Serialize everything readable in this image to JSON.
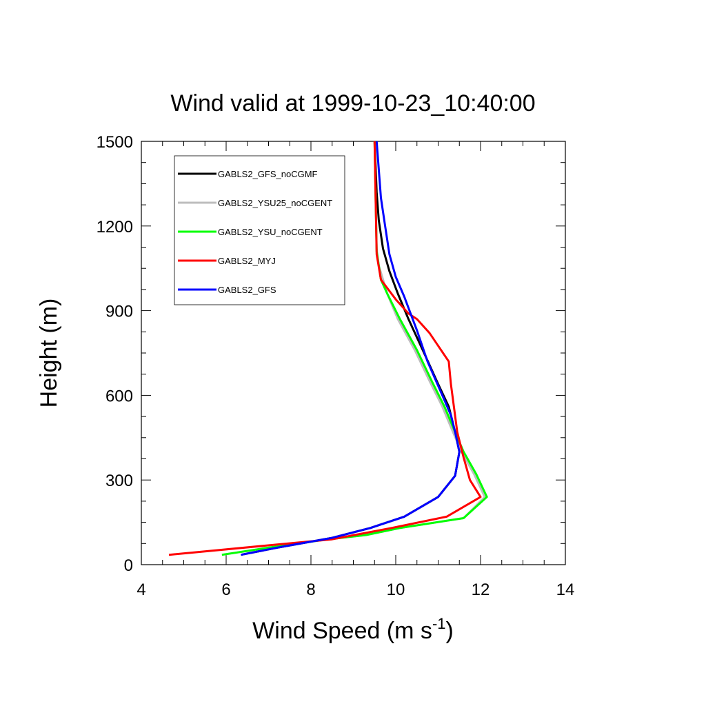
{
  "chart_data": {
    "type": "line",
    "title": "Wind valid at 1999-10-23_10:40:00",
    "xlabel": "Wind Speed (m s",
    "xlabel_sup": "-1",
    "xlabel_close": ")",
    "ylabel": "Height (m)",
    "xlim": [
      4,
      14
    ],
    "ylim": [
      0,
      1500
    ],
    "xticks": [
      4,
      6,
      8,
      10,
      12,
      14
    ],
    "yticks": [
      0,
      300,
      600,
      900,
      1200,
      1500
    ],
    "legend_position": "top-left",
    "series": [
      {
        "name": "GABLS2_GFS_noCGMF",
        "color": "#000000",
        "points": [
          [
            6.35,
            35
          ],
          [
            7.2,
            60
          ],
          [
            8.5,
            95
          ],
          [
            9.4,
            130
          ],
          [
            10.2,
            170
          ],
          [
            11.0,
            240
          ],
          [
            11.4,
            315
          ],
          [
            11.5,
            400
          ],
          [
            11.4,
            470
          ],
          [
            11.25,
            560
          ],
          [
            11.0,
            640
          ],
          [
            10.7,
            740
          ],
          [
            10.3,
            870
          ],
          [
            10.05,
            960
          ],
          [
            9.85,
            1040
          ],
          [
            9.7,
            1120
          ],
          [
            9.6,
            1220
          ],
          [
            9.55,
            1320
          ],
          [
            9.5,
            1500
          ]
        ]
      },
      {
        "name": "GABLS2_YSU25_noCGENT",
        "color": "#bdbdbd",
        "points": [
          [
            5.9,
            35
          ],
          [
            7.0,
            60
          ],
          [
            8.4,
            90
          ],
          [
            9.3,
            105
          ],
          [
            10.1,
            130
          ],
          [
            11.6,
            165
          ],
          [
            12.1,
            240
          ],
          [
            11.85,
            320
          ],
          [
            11.55,
            400
          ],
          [
            11.35,
            470
          ],
          [
            11.1,
            560
          ],
          [
            10.8,
            650
          ],
          [
            10.45,
            760
          ],
          [
            10.05,
            870
          ],
          [
            9.8,
            960
          ],
          [
            9.6,
            1060
          ],
          [
            9.55,
            1120
          ],
          [
            9.5,
            1500
          ]
        ]
      },
      {
        "name": "GABLS2_YSU_noCGENT",
        "color": "#00ff00",
        "points": [
          [
            5.9,
            35
          ],
          [
            7.0,
            60
          ],
          [
            8.4,
            90
          ],
          [
            9.3,
            105
          ],
          [
            10.1,
            130
          ],
          [
            11.6,
            165
          ],
          [
            12.15,
            240
          ],
          [
            11.9,
            320
          ],
          [
            11.6,
            400
          ],
          [
            11.4,
            470
          ],
          [
            11.15,
            560
          ],
          [
            10.85,
            650
          ],
          [
            10.5,
            760
          ],
          [
            10.1,
            870
          ],
          [
            9.8,
            960
          ],
          [
            9.65,
            1010
          ],
          [
            9.55,
            1110
          ],
          [
            9.5,
            1500
          ]
        ]
      },
      {
        "name": "GABLS2_MYJ",
        "color": "#ff0000",
        "points": [
          [
            4.65,
            35
          ],
          [
            8.5,
            90
          ],
          [
            9.9,
            130
          ],
          [
            11.2,
            170
          ],
          [
            12.0,
            240
          ],
          [
            11.75,
            300
          ],
          [
            11.6,
            380
          ],
          [
            11.45,
            470
          ],
          [
            11.3,
            640
          ],
          [
            11.25,
            720
          ],
          [
            10.8,
            820
          ],
          [
            10.5,
            870
          ],
          [
            10.3,
            890
          ],
          [
            10.0,
            940
          ],
          [
            9.65,
            1010
          ],
          [
            9.55,
            1100
          ],
          [
            9.5,
            1500
          ]
        ]
      },
      {
        "name": "GABLS2_GFS",
        "color": "#0000ff",
        "points": [
          [
            6.35,
            35
          ],
          [
            7.2,
            60
          ],
          [
            8.5,
            95
          ],
          [
            9.4,
            130
          ],
          [
            10.2,
            170
          ],
          [
            11.0,
            240
          ],
          [
            11.4,
            315
          ],
          [
            11.5,
            400
          ],
          [
            11.4,
            470
          ],
          [
            11.3,
            530
          ],
          [
            11.1,
            600
          ],
          [
            10.75,
            720
          ],
          [
            10.5,
            830
          ],
          [
            10.35,
            890
          ],
          [
            10.2,
            950
          ],
          [
            10.0,
            1020
          ],
          [
            9.85,
            1100
          ],
          [
            9.75,
            1200
          ],
          [
            9.65,
            1300
          ],
          [
            9.6,
            1400
          ],
          [
            9.55,
            1500
          ]
        ]
      }
    ]
  }
}
